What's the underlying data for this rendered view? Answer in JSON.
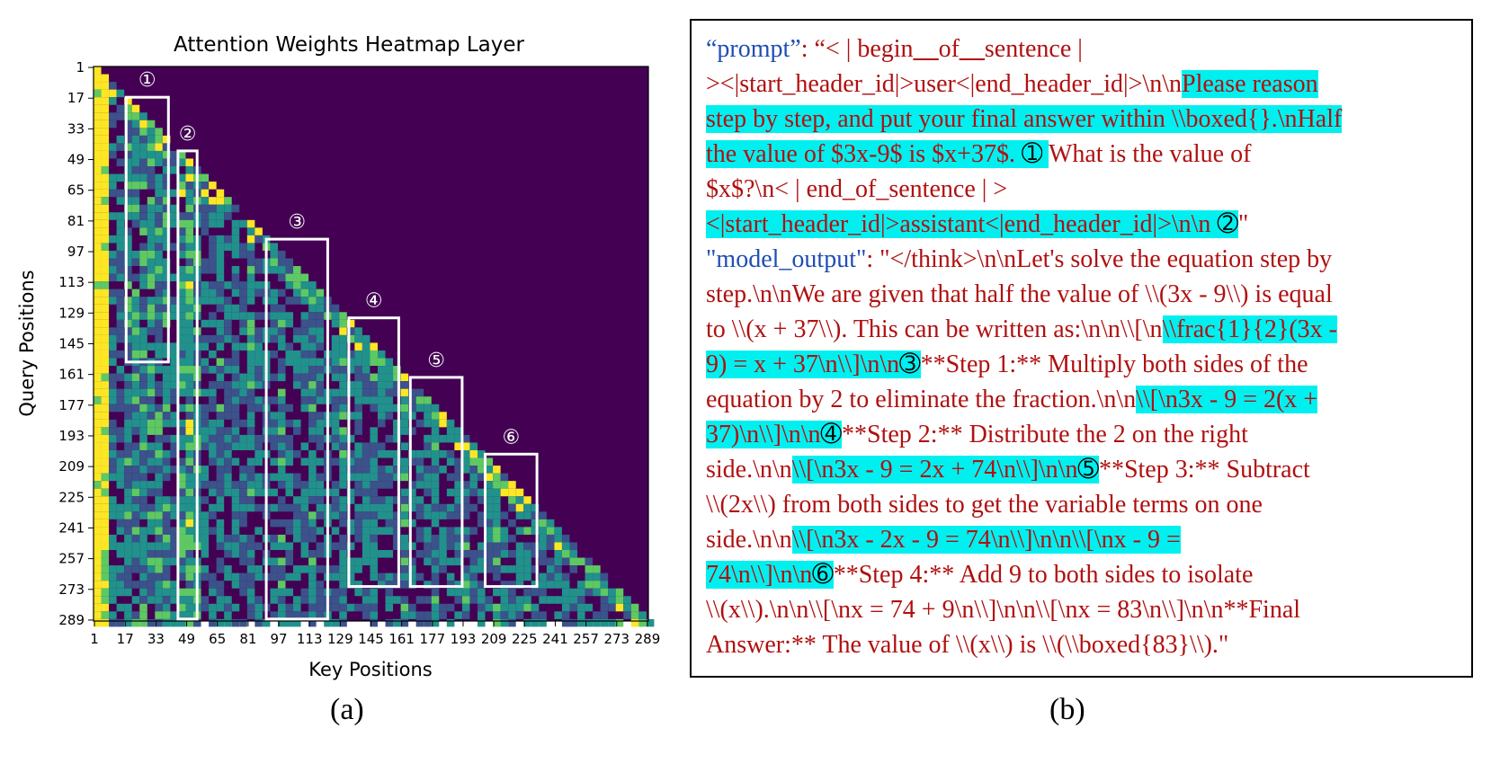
{
  "panel_a": {
    "label": "(a)",
    "chart_data": {
      "type": "heatmap",
      "title": "Attention Weights Heatmap Layer",
      "xlabel": "Key Positions",
      "ylabel": "Query Positions",
      "n_positions": 289,
      "x_ticks": [
        "1",
        "17",
        "33",
        "49",
        "65",
        "81",
        "97",
        "113",
        "129",
        "145",
        "161",
        "177",
        "193",
        "209",
        "225",
        "241",
        "257",
        "273",
        "289"
      ],
      "y_ticks": [
        "1",
        "17",
        "33",
        "49",
        "65",
        "81",
        "97",
        "113",
        "129",
        "145",
        "161",
        "177",
        "193",
        "209",
        "225",
        "241",
        "257",
        "273",
        "289"
      ],
      "mask": "causal (lower triangular)",
      "colormap": {
        "low": "#440154",
        "mid": "#21918c",
        "high": "#fde725"
      },
      "boxes": [
        {
          "label": "①",
          "x_range": [
            18,
            40
          ],
          "y_range": [
            17,
            155
          ]
        },
        {
          "label": "②",
          "x_range": [
            45,
            55
          ],
          "y_range": [
            45,
            289
          ]
        },
        {
          "label": "③",
          "x_range": [
            91,
            123
          ],
          "y_range": [
            91,
            289
          ]
        },
        {
          "label": "④",
          "x_range": [
            134,
            160
          ],
          "y_range": [
            132,
            272
          ]
        },
        {
          "label": "⑤",
          "x_range": [
            166,
            193
          ],
          "y_range": [
            163,
            272
          ]
        },
        {
          "label": "⑥",
          "x_range": [
            205,
            232
          ],
          "y_range": [
            203,
            272
          ]
        }
      ]
    }
  },
  "panel_b": {
    "label": "(b)",
    "lines": [
      [
        {
          "t": "“prompt”",
          "c": "key"
        },
        {
          "t": ": “< | begin"
        },
        {
          "t": "__",
          "bold": true
        },
        {
          "t": "of"
        },
        {
          "t": "__",
          "bold": true
        },
        {
          "t": "sentence |"
        }
      ],
      [
        {
          "t": "><|start_header_id|>user<|end_header_id|>\\n\\n"
        },
        {
          "t": "Please reason",
          "hl": true
        }
      ],
      [
        {
          "t": "step by step, and put your final answer within \\\\boxed{}.\\nHalf",
          "hl": true
        }
      ],
      [
        {
          "t": "the value of $3x-9$ is $x+37$. ",
          "hl": true
        },
        {
          "t": "➀",
          "hl": true,
          "c": "circ"
        },
        {
          "t": " ",
          "hl": true
        },
        {
          "t": "What is the value of"
        }
      ],
      [
        {
          "t": "$x$?\\n< | end_of_sentence | >"
        }
      ],
      [
        {
          "t": "<|start_header_id|>assistant<|end_header_id|>\\n\\n ",
          "hl": true
        },
        {
          "t": "➁",
          "hl": true,
          "c": "circ"
        },
        {
          "t": "\""
        }
      ],
      [
        {
          "t": "\"model_output\"",
          "c": "key"
        },
        {
          "t": ": \"</think>\\n\\nLet's solve the equation step by"
        }
      ],
      [
        {
          "t": "step.\\n\\nWe are given that half the value of \\\\(3x - 9\\\\) is equal"
        }
      ],
      [
        {
          "t": "to \\\\(x + 37\\\\). This can be written as:\\n\\n\\\\[\\n"
        },
        {
          "t": "\\\\frac{1}{2}(3x -",
          "hl": true
        }
      ],
      [
        {
          "t": "9) = x + 37\\n\\\\]\\n\\n",
          "hl": true
        },
        {
          "t": "➂",
          "hl": true,
          "c": "circ"
        },
        {
          "t": "**Step 1:** Multiply both sides of the"
        }
      ],
      [
        {
          "t": "equation by 2 to eliminate the fraction.\\n\\n"
        },
        {
          "t": "\\\\[\\n3x - 9 = 2(x +",
          "hl": true
        }
      ],
      [
        {
          "t": "37)\\n\\\\]\\n\\n",
          "hl": true
        },
        {
          "t": "➃",
          "hl": true,
          "c": "circ"
        },
        {
          "t": "**Step 2:** Distribute the 2 on the right"
        }
      ],
      [
        {
          "t": "side.\\n\\n"
        },
        {
          "t": "\\\\[\\n3x - 9 = 2x + 74\\n\\\\]\\n\\n",
          "hl": true
        },
        {
          "t": "➄",
          "hl": true,
          "c": "circ"
        },
        {
          "t": "**Step 3:** Subtract"
        }
      ],
      [
        {
          "t": "\\\\(2x\\\\) from both sides to get the variable terms on one"
        }
      ],
      [
        {
          "t": "side.\\n\\n"
        },
        {
          "t": "\\\\[\\n3x - 2x - 9 = 74\\n\\\\]\\n\\n\\\\[\\nx - 9 =",
          "hl": true
        }
      ],
      [
        {
          "t": "74\\n\\\\]\\n\\n",
          "hl": true
        },
        {
          "t": "➅",
          "hl": true,
          "c": "circ"
        },
        {
          "t": "**Step 4:** Add 9 to both sides to isolate"
        }
      ],
      [
        {
          "t": "\\\\(x\\\\).\\n\\n\\\\[\\nx = 74 + 9\\n\\\\]\\n\\n\\\\[\\nx = 83\\n\\\\]\\n\\n**Final"
        }
      ],
      [
        {
          "t": "Answer:** The value of \\\\(x\\\\) is \\\\(\\\\boxed{83}\\\\).\""
        }
      ]
    ]
  }
}
